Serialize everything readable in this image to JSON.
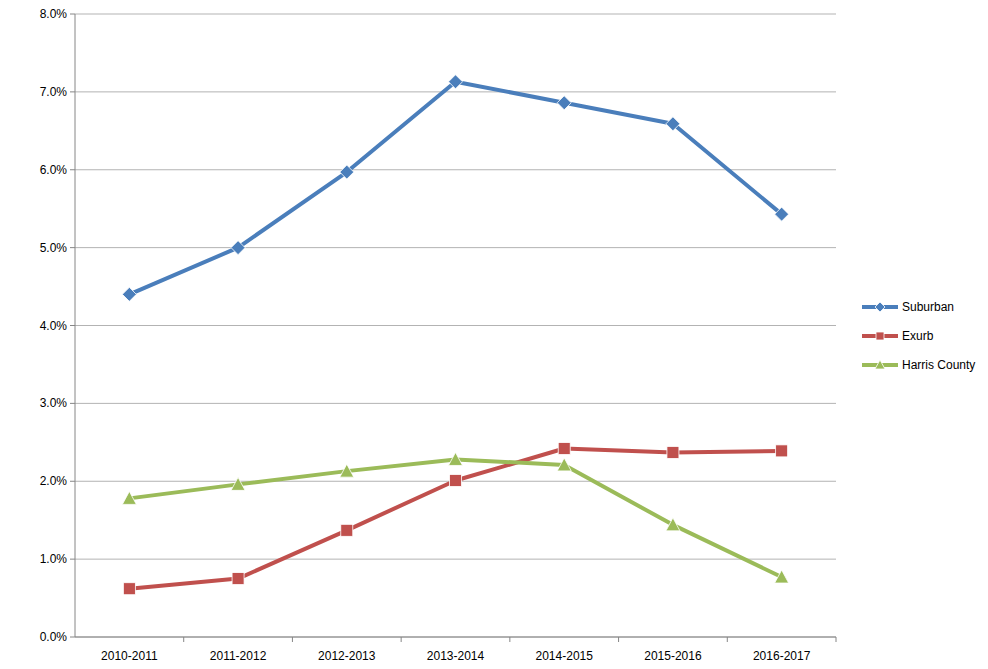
{
  "chart_data": {
    "type": "line",
    "categories": [
      "2010-2011",
      "2011-2012",
      "2012-2013",
      "2013-2014",
      "2014-2015",
      "2015-2016",
      "2016-2017"
    ],
    "series": [
      {
        "name": "Suburban",
        "color": "#4a7ebb",
        "marker": "diamond",
        "values": [
          4.4,
          5.0,
          5.97,
          7.13,
          6.86,
          6.59,
          5.43
        ]
      },
      {
        "name": "Exurb",
        "color": "#c0504d",
        "marker": "square",
        "values": [
          0.62,
          0.75,
          1.37,
          2.01,
          2.42,
          2.37,
          2.39
        ]
      },
      {
        "name": "Harris County",
        "color": "#9bbb59",
        "marker": "triangle",
        "values": [
          1.78,
          1.96,
          2.13,
          2.28,
          2.21,
          1.44,
          0.77
        ]
      }
    ],
    "ylim": [
      0,
      8
    ],
    "yticks": [
      {
        "value": 0,
        "label": "0.0%"
      },
      {
        "value": 1,
        "label": "1.0%"
      },
      {
        "value": 2,
        "label": "2.0%"
      },
      {
        "value": 3,
        "label": "3.0%"
      },
      {
        "value": 4,
        "label": "4.0%"
      },
      {
        "value": 5,
        "label": "5.0%"
      },
      {
        "value": 6,
        "label": "6.0%"
      },
      {
        "value": 7,
        "label": "7.0%"
      },
      {
        "value": 8,
        "label": "8.0%"
      }
    ],
    "grid": true,
    "legend": "right"
  }
}
